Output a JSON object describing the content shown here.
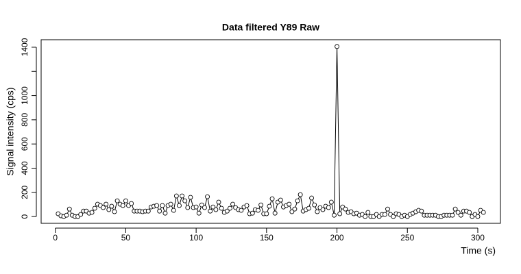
{
  "chart_data": {
    "type": "line",
    "title": "Data filtered Y89 Raw",
    "x_label": "Time (s)",
    "y_label": "Signal intensity (cps)",
    "marker": "open-circle",
    "color": "#000000",
    "grid": false,
    "x": [
      2,
      4,
      6,
      8,
      10,
      12,
      14,
      16,
      18,
      20,
      22,
      24,
      26,
      28,
      30,
      32,
      34,
      36,
      38,
      40,
      42,
      44,
      46,
      48,
      50,
      52,
      54,
      56,
      58,
      60,
      62,
      64,
      66,
      68,
      70,
      72,
      74,
      76,
      78,
      80,
      82,
      84,
      86,
      88,
      90,
      92,
      94,
      96,
      98,
      100,
      102,
      104,
      106,
      108,
      110,
      112,
      114,
      116,
      118,
      120,
      122,
      124,
      126,
      128,
      130,
      132,
      134,
      136,
      138,
      140,
      142,
      144,
      146,
      148,
      150,
      152,
      154,
      156,
      158,
      160,
      162,
      164,
      166,
      168,
      170,
      172,
      174,
      176,
      178,
      180,
      182,
      184,
      186,
      188,
      190,
      192,
      194,
      196,
      198,
      200,
      202,
      204,
      206,
      208,
      210,
      212,
      214,
      216,
      218,
      220,
      222,
      224,
      226,
      228,
      230,
      232,
      234,
      236,
      238,
      240,
      242,
      244,
      246,
      248,
      250,
      252,
      254,
      256,
      258,
      260,
      262,
      264,
      266,
      268,
      270,
      272,
      274,
      276,
      278,
      280,
      282,
      284,
      286,
      288,
      290,
      292,
      294,
      296,
      298,
      300,
      302,
      304
    ],
    "values": [
      23,
      6,
      0,
      11,
      62,
      11,
      0,
      0,
      17,
      45,
      45,
      28,
      34,
      68,
      102,
      91,
      74,
      102,
      57,
      85,
      40,
      130,
      102,
      91,
      130,
      91,
      108,
      45,
      45,
      45,
      40,
      45,
      45,
      79,
      85,
      91,
      45,
      91,
      28,
      91,
      102,
      51,
      170,
      91,
      170,
      130,
      74,
      159,
      74,
      79,
      28,
      96,
      74,
      164,
      45,
      79,
      57,
      119,
      68,
      34,
      45,
      68,
      102,
      74,
      57,
      51,
      79,
      91,
      23,
      28,
      57,
      51,
      96,
      23,
      23,
      85,
      147,
      28,
      119,
      136,
      79,
      91,
      102,
      40,
      62,
      130,
      181,
      45,
      57,
      68,
      153,
      96,
      40,
      74,
      57,
      85,
      74,
      119,
      11,
      1406,
      23,
      79,
      62,
      34,
      40,
      23,
      28,
      11,
      17,
      0,
      34,
      0,
      0,
      17,
      0,
      17,
      17,
      62,
      17,
      0,
      23,
      17,
      0,
      11,
      0,
      17,
      28,
      40,
      51,
      45,
      11,
      11,
      11,
      11,
      11,
      0,
      0,
      11,
      11,
      11,
      11,
      62,
      34,
      11,
      45,
      45,
      34,
      0,
      17,
      0,
      51,
      34
    ],
    "xlim": [
      -10.08,
      316.08
    ],
    "ylim": [
      -56,
      1462
    ],
    "xticks": [
      0,
      50,
      100,
      150,
      200,
      250,
      300
    ],
    "yticks": [
      0,
      200,
      400,
      600,
      800,
      1000,
      {
        "value": 1200,
        "label": null
      },
      1400
    ]
  }
}
